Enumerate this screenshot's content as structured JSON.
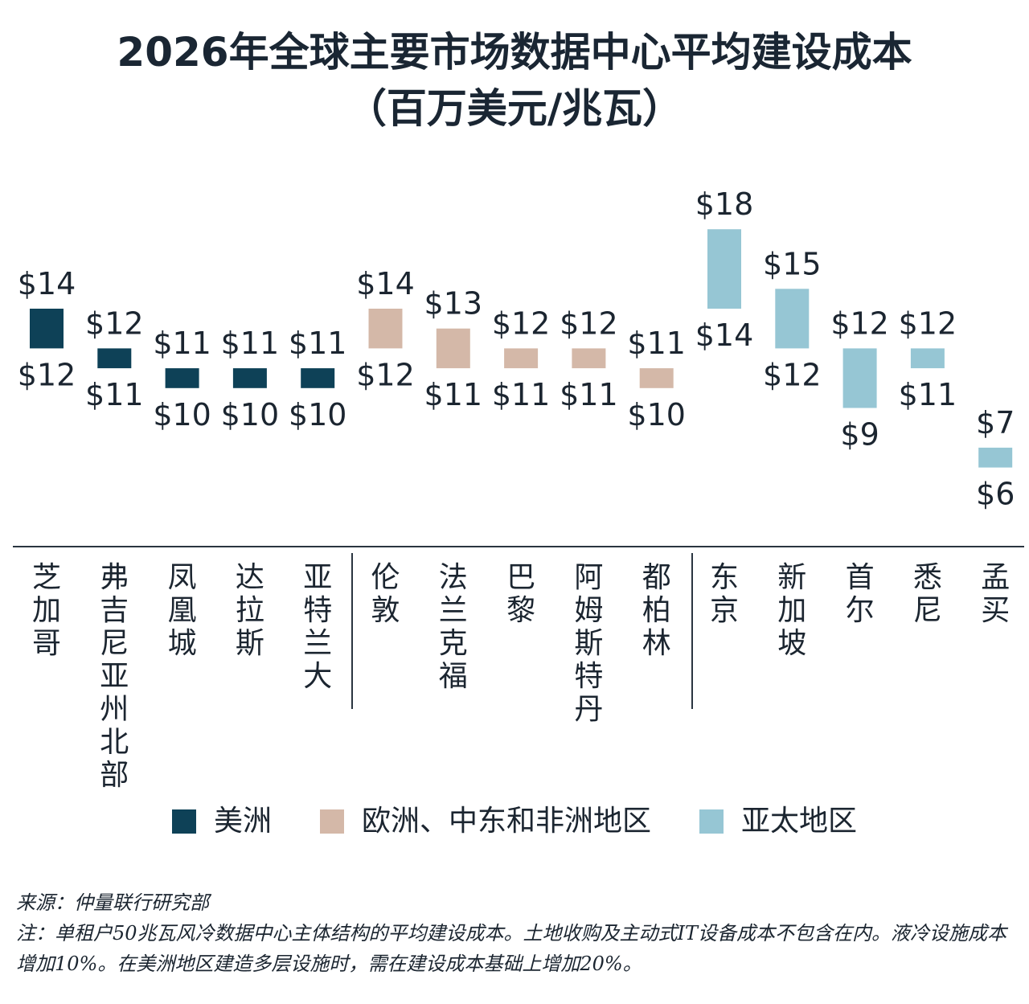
{
  "title": {
    "line1": "2026年全球主要市场数据中心平均建设成本",
    "line2": "（百万美元/兆瓦）"
  },
  "chart_data": {
    "type": "floating-bar",
    "title": "2026年全球主要市场数据中心平均建设成本（百万美元/兆瓦）",
    "unit_prefix": "$",
    "categories": [
      "芝加哥",
      "弗吉尼亚州北部",
      "凤凰城",
      "达拉斯",
      "亚特兰大",
      "伦敦",
      "法兰克福",
      "巴黎",
      "阿姆斯特丹",
      "都柏林",
      "东京",
      "新加坡",
      "首尔",
      "悉尼",
      "孟买"
    ],
    "series": [
      {
        "name": "美洲",
        "color": "#0e4157",
        "categories": [
          "芝加哥",
          "弗吉尼亚州北部",
          "凤凰城",
          "达拉斯",
          "亚特兰大"
        ],
        "low": [
          12,
          11,
          10,
          10,
          10
        ],
        "high": [
          14,
          12,
          11,
          11,
          11
        ]
      },
      {
        "name": "欧洲、中东和非洲地区",
        "color": "#d4b8a8",
        "categories": [
          "伦敦",
          "法兰克福",
          "巴黎",
          "阿姆斯特丹",
          "都柏林"
        ],
        "low": [
          12,
          11,
          11,
          11,
          10
        ],
        "high": [
          14,
          13,
          12,
          12,
          11
        ]
      },
      {
        "name": "亚太地区",
        "color": "#96c6d4",
        "categories": [
          "东京",
          "新加坡",
          "首尔",
          "悉尼",
          "孟买"
        ],
        "low": [
          14,
          12,
          9,
          11,
          6
        ],
        "high": [
          18,
          15,
          12,
          12,
          7
        ]
      }
    ],
    "legend_position": "bottom"
  },
  "legend": [
    {
      "label": "美洲",
      "color": "#0e4157"
    },
    {
      "label": "欧洲、中东和非洲地区",
      "color": "#d4b8a8"
    },
    {
      "label": "亚太地区",
      "color": "#96c6d4"
    }
  ],
  "notes": {
    "source": "来源：仲量联行研究部",
    "note": "注：单租户50兆瓦风冷数据中心主体结构的平均建设成本。土地收购及主动式IT设备成本不包含在内。液冷设施成本增加10%。在美洲地区建造多层设施时，需在建设成本基础上增加20%。"
  }
}
